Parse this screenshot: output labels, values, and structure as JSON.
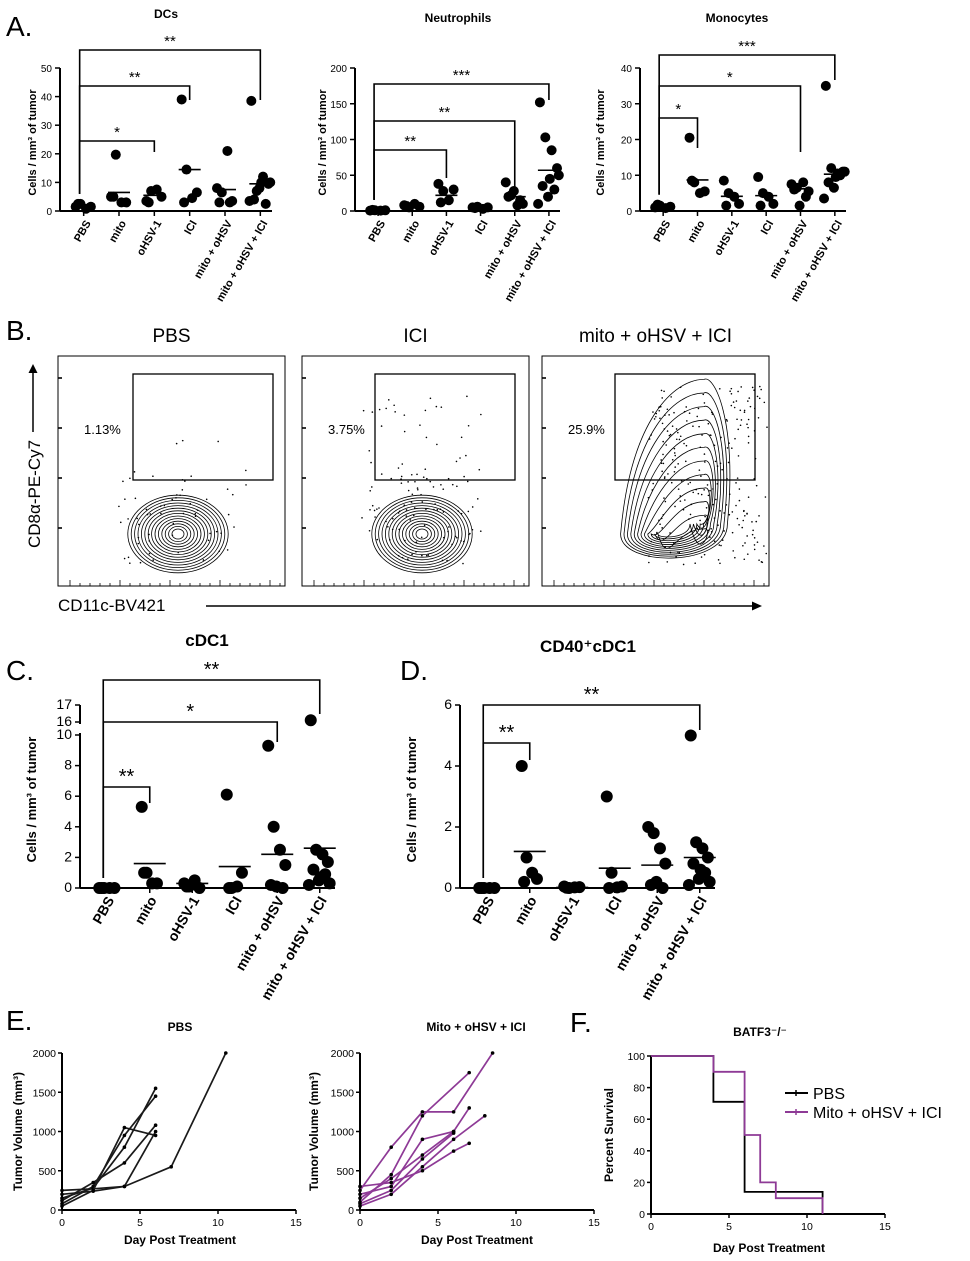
{
  "panel_letters": [
    "A.",
    "B.",
    "C.",
    "D.",
    "E.",
    "F."
  ],
  "chart_data": [
    {
      "id": "A_dcs",
      "panel": "A",
      "type": "scatter",
      "title": "DCs",
      "ylabel": "Cells / mm³ of tumor",
      "ylim": [
        0,
        50
      ],
      "yticks": [
        0,
        10,
        20,
        30,
        40,
        50
      ],
      "categories": [
        "PBS",
        "mito",
        "oHSV-1",
        "ICI",
        "mito + oHSV",
        "mito + oHSV + ICI"
      ],
      "points": [
        [
          1.5,
          2.5,
          0.8,
          1.5,
          2.5
        ],
        [
          5,
          19.7,
          3,
          3,
          5
        ],
        [
          3.5,
          7,
          7.5,
          5,
          3
        ],
        [
          39,
          14.5,
          4.5,
          6.5,
          3
        ],
        [
          8,
          6.5,
          21,
          3.5,
          3,
          3
        ],
        [
          38.5,
          7,
          12,
          9.5,
          4,
          2.5,
          8,
          10,
          3.5,
          10
        ]
      ],
      "means": [
        1.8,
        6.5,
        5.5,
        14.5,
        7.5,
        9.5
      ],
      "significance": [
        {
          "from": 0,
          "to": 2,
          "label": "*"
        },
        {
          "from": 0,
          "to": 3,
          "label": "**"
        },
        {
          "from": 0,
          "to": 5,
          "label": "**"
        }
      ]
    },
    {
      "id": "A_neut",
      "panel": "A",
      "type": "scatter",
      "title": "Neutrophils",
      "ylabel": "Cells / mm³ of tumor",
      "ylim": [
        0,
        200
      ],
      "yticks": [
        0,
        50,
        100,
        150,
        200
      ],
      "categories": [
        "PBS",
        "mito",
        "oHSV-1",
        "ICI",
        "mito + oHSV",
        "mito + oHSV + ICI"
      ],
      "points": [
        [
          0.5,
          1,
          0.5,
          1,
          1.5
        ],
        [
          8,
          5,
          10,
          6,
          7
        ],
        [
          38,
          28,
          15,
          30,
          12
        ],
        [
          5,
          6,
          3,
          5,
          4
        ],
        [
          40,
          22,
          8,
          10,
          20,
          15,
          28
        ],
        [
          152,
          103,
          85,
          60,
          35,
          30,
          20,
          50,
          10,
          45
        ]
      ],
      "means": [
        1,
        7,
        22,
        5,
        20,
        57
      ],
      "significance": [
        {
          "from": 0,
          "to": 2,
          "label": "**"
        },
        {
          "from": 0,
          "to": 4,
          "label": "**"
        },
        {
          "from": 0,
          "to": 5,
          "label": "***"
        }
      ]
    },
    {
      "id": "A_mono",
      "panel": "A",
      "type": "scatter",
      "title": "Monocytes",
      "ylabel": "Cells / mm³ of tumor",
      "ylim": [
        0,
        40
      ],
      "yticks": [
        0,
        10,
        20,
        30,
        40
      ],
      "categories": [
        "PBS",
        "mito",
        "oHSV-1",
        "ICI",
        "mito + oHSV",
        "mito + oHSV + ICI"
      ],
      "points": [
        [
          1,
          1.5,
          0.8,
          1.2,
          1.8
        ],
        [
          20.5,
          8,
          5,
          5.5,
          8.5
        ],
        [
          8.5,
          5,
          4,
          2,
          1.5
        ],
        [
          9.5,
          5,
          4,
          2,
          1.5
        ],
        [
          7.5,
          6.5,
          8,
          5.5,
          6,
          4,
          1.5
        ],
        [
          35,
          12,
          10.5,
          11,
          8,
          10,
          6.5,
          11,
          3.5,
          9.5
        ]
      ],
      "means": [
        1.2,
        8.7,
        4.1,
        4.3,
        6.2,
        10.3
      ],
      "significance": [
        {
          "from": 0,
          "to": 1,
          "label": "*"
        },
        {
          "from": 0,
          "to": 4,
          "label": "*"
        },
        {
          "from": 0,
          "to": 5,
          "label": "***"
        }
      ]
    },
    {
      "id": "C_cdc1",
      "panel": "C",
      "type": "scatter",
      "title": "cDC1",
      "ylabel": "Cells / mm³ of tumor",
      "ylim": [
        0,
        17
      ],
      "axis_break": [
        10,
        16
      ],
      "yticks": [
        0,
        2,
        4,
        6,
        8,
        10,
        16,
        17
      ],
      "categories": [
        "PBS",
        "mito",
        "oHSV-1",
        "ICI",
        "mito + oHSV",
        "mito + oHSV + ICI"
      ],
      "points": [
        [
          0,
          0,
          0,
          0,
          0
        ],
        [
          5.3,
          1,
          0.3,
          0.3,
          1
        ],
        [
          0.3,
          0.1,
          0.5,
          0,
          0.1
        ],
        [
          6.1,
          0,
          0.1,
          1,
          0
        ],
        [
          9.3,
          4,
          2.5,
          1.5,
          0.2,
          0,
          0.1
        ],
        [
          16.1,
          2.5,
          2.2,
          1.7,
          1.2,
          0.9,
          0.5,
          0.3,
          0.2,
          0.7
        ]
      ],
      "means": [
        0,
        1.6,
        0.3,
        1.4,
        2.2,
        2.6
      ],
      "significance": [
        {
          "from": 0,
          "to": 1,
          "label": "**"
        },
        {
          "from": 0,
          "to": 4,
          "label": "*"
        },
        {
          "from": 0,
          "to": 5,
          "label": "**"
        }
      ]
    },
    {
      "id": "D_cd40",
      "panel": "D",
      "type": "scatter",
      "title": "CD40⁺cDC1",
      "ylabel": "Cells / mm³ of tumor",
      "ylim": [
        0,
        6
      ],
      "yticks": [
        0,
        2,
        4,
        6
      ],
      "categories": [
        "PBS",
        "mito",
        "oHSV-1",
        "ICI",
        "mito + oHSV",
        "mito + oHSV + ICI"
      ],
      "points": [
        [
          0,
          0,
          0,
          0,
          0
        ],
        [
          4,
          1,
          0.5,
          0.3,
          0.2
        ],
        [
          0.05,
          0,
          0.02,
          0.03,
          0.01
        ],
        [
          3,
          0.5,
          0.02,
          0.05,
          0
        ],
        [
          2,
          1.8,
          1.3,
          0.8,
          0.1,
          0,
          0.2
        ],
        [
          5,
          1.5,
          1.3,
          1,
          0.8,
          0.5,
          0.3,
          0.2,
          0.1,
          0.6
        ]
      ],
      "means": [
        0,
        1.2,
        0.02,
        0.65,
        0.75,
        1.0
      ],
      "significance": [
        {
          "from": 0,
          "to": 1,
          "label": "**"
        },
        {
          "from": 0,
          "to": 5,
          "label": "**"
        }
      ]
    },
    {
      "id": "E_pbs",
      "panel": "E",
      "type": "line",
      "title": "PBS",
      "xlabel": "Day Post Treatment",
      "ylabel": "Tumor Volume (mm³)",
      "color": "#1a1a1a",
      "xlim": [
        0,
        15
      ],
      "ylim": [
        0,
        2000
      ],
      "xticks": [
        0,
        5,
        10,
        15
      ],
      "yticks": [
        0,
        500,
        1000,
        1500,
        2000
      ],
      "series": [
        {
          "x": [
            0,
            2,
            4,
            6
          ],
          "y": [
            150,
            280,
            800,
            1550
          ]
        },
        {
          "x": [
            0,
            2,
            4,
            6
          ],
          "y": [
            80,
            300,
            950,
            1450
          ]
        },
        {
          "x": [
            0,
            2,
            4,
            6
          ],
          "y": [
            250,
            270,
            300,
            1000
          ]
        },
        {
          "x": [
            0,
            2,
            4,
            6
          ],
          "y": [
            50,
            250,
            1050,
            950
          ]
        },
        {
          "x": [
            0,
            2,
            4,
            6
          ],
          "y": [
            120,
            350,
            600,
            1080
          ]
        },
        {
          "x": [
            0,
            2,
            4,
            7,
            10.5
          ],
          "y": [
            200,
            240,
            300,
            550,
            2000
          ]
        }
      ]
    },
    {
      "id": "E_mito",
      "panel": "E",
      "type": "line",
      "title": "Mito + oHSV + ICI",
      "xlabel": "Day Post Treatment",
      "ylabel": "Tumor Volume (mm³)",
      "color": "#8e3a96",
      "xlim": [
        0,
        15
      ],
      "ylim": [
        0,
        2000
      ],
      "xticks": [
        0,
        5,
        10,
        15
      ],
      "yticks": [
        0,
        500,
        1000,
        1500,
        2000
      ],
      "series": [
        {
          "x": [
            0,
            2,
            4,
            7
          ],
          "y": [
            100,
            450,
            1200,
            1750
          ]
        },
        {
          "x": [
            0,
            2,
            4,
            6,
            8.5
          ],
          "y": [
            250,
            800,
            1250,
            1250,
            2000
          ]
        },
        {
          "x": [
            0,
            2,
            4,
            6,
            7
          ],
          "y": [
            200,
            300,
            900,
            1000,
            1300
          ]
        },
        {
          "x": [
            0,
            2,
            4,
            6,
            8
          ],
          "y": [
            50,
            200,
            550,
            900,
            1200
          ]
        },
        {
          "x": [
            0,
            2,
            4,
            6
          ],
          "y": [
            150,
            400,
            700,
            1000
          ]
        },
        {
          "x": [
            0,
            2,
            4,
            6,
            7
          ],
          "y": [
            300,
            350,
            500,
            750,
            850
          ]
        },
        {
          "x": [
            0,
            2,
            4,
            6
          ],
          "y": [
            80,
            250,
            650,
            980
          ]
        }
      ]
    },
    {
      "id": "F_batf3",
      "panel": "F",
      "type": "line",
      "title": "BATF3⁻/⁻",
      "xlabel": "Day Post Treatment",
      "ylabel": "Percent Survival",
      "xlim": [
        0,
        15
      ],
      "ylim": [
        0,
        100
      ],
      "xticks": [
        0,
        5,
        10,
        15
      ],
      "yticks": [
        0,
        20,
        40,
        60,
        80,
        100
      ],
      "series": [
        {
          "name": "PBS",
          "color": "#000000",
          "x": [
            0,
            4,
            6,
            11
          ],
          "y": [
            100,
            71,
            14,
            0
          ]
        },
        {
          "name": "Mito + oHSV + ICI",
          "color": "#8e3a96",
          "x": [
            0,
            4,
            6,
            7,
            8,
            11
          ],
          "y": [
            100,
            90,
            50,
            20,
            10,
            0
          ]
        }
      ]
    }
  ],
  "flow_panels": [
    {
      "title": "PBS",
      "gate_percent": "1.13%",
      "spread": 0.5
    },
    {
      "title": "ICI",
      "gate_percent": "3.75%",
      "spread": 1.0
    },
    {
      "title": "mito + oHSV + ICI",
      "gate_percent": "25.9%",
      "spread": 2.0
    }
  ],
  "flow_axes": {
    "y_label": "CD8α-PE-Cy7",
    "x_label": "CD11c-BV421"
  }
}
